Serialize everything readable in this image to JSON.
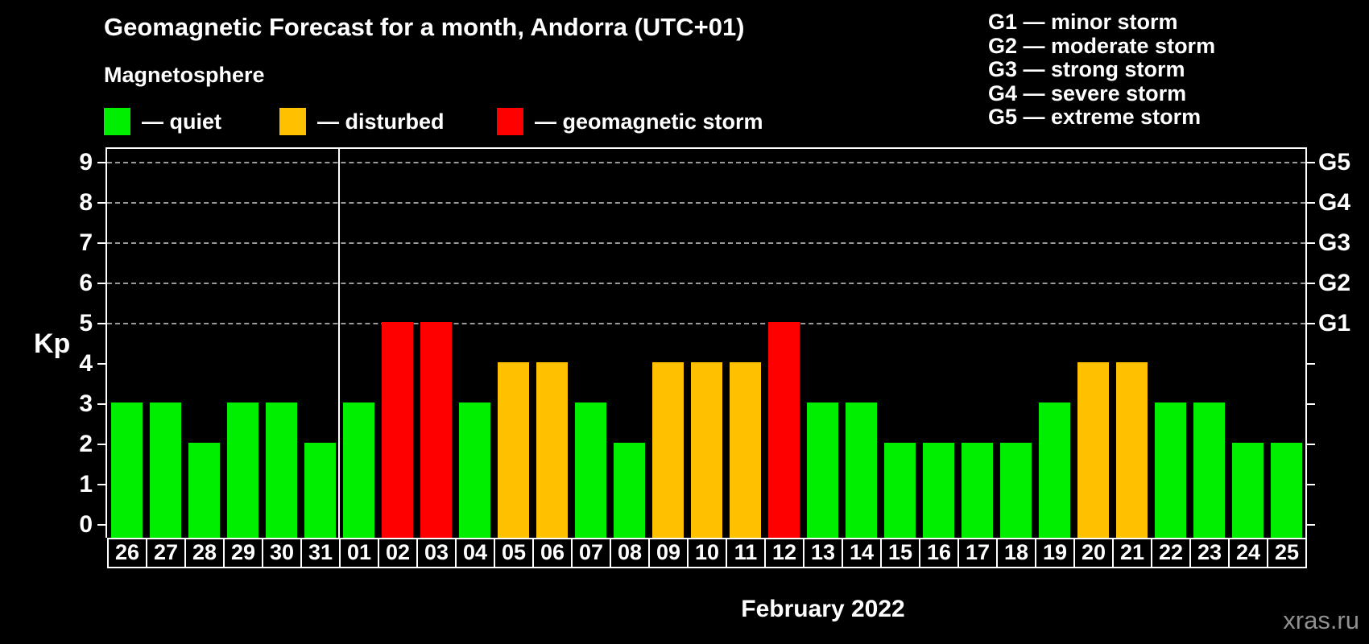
{
  "title": "Geomagnetic Forecast for a month, Andorra (UTC+01)",
  "subtitle": "Magnetosphere",
  "legend": {
    "quiet": {
      "label": "— quiet",
      "color": "#00ee00"
    },
    "disturbed": {
      "label": "— disturbed",
      "color": "#ffc000"
    },
    "storm": {
      "label": "— geomagnetic storm",
      "color": "#ff0000"
    }
  },
  "g_scale": [
    {
      "label": "G1 — minor storm"
    },
    {
      "label": "G2 — moderate storm"
    },
    {
      "label": "G3 — strong storm"
    },
    {
      "label": "G4 — severe storm"
    },
    {
      "label": "G5 — extreme storm"
    }
  ],
  "axis": {
    "kp_label": "Kp",
    "kp_ticks": [
      "0",
      "1",
      "2",
      "3",
      "4",
      "5",
      "6",
      "7",
      "8",
      "9"
    ],
    "right_labels": [
      {
        "label": "G1",
        "kp": 5
      },
      {
        "label": "G2",
        "kp": 6
      },
      {
        "label": "G3",
        "kp": 7
      },
      {
        "label": "G4",
        "kp": 8
      },
      {
        "label": "G5",
        "kp": 9
      }
    ]
  },
  "month_label": "February 2022",
  "watermark": "xras.ru",
  "chart_data": {
    "type": "bar",
    "title": "Geomagnetic Forecast for a month, Andorra (UTC+01)",
    "xlabel": "February 2022",
    "ylabel": "Kp",
    "ylim": [
      0,
      9
    ],
    "grid_levels": [
      5,
      6,
      7,
      8,
      9
    ],
    "legend_position": "top",
    "month_separator_after": "31",
    "categories": [
      "26",
      "27",
      "28",
      "29",
      "30",
      "31",
      "01",
      "02",
      "03",
      "04",
      "05",
      "06",
      "07",
      "08",
      "09",
      "10",
      "11",
      "12",
      "13",
      "14",
      "15",
      "16",
      "17",
      "18",
      "19",
      "20",
      "21",
      "22",
      "23",
      "24",
      "25"
    ],
    "values": [
      3,
      3,
      2,
      3,
      3,
      2,
      3,
      5,
      5,
      3,
      4,
      4,
      3,
      2,
      4,
      4,
      4,
      5,
      3,
      3,
      2,
      2,
      2,
      2,
      3,
      4,
      4,
      3,
      3,
      2,
      2
    ],
    "statuses": [
      "quiet",
      "quiet",
      "quiet",
      "quiet",
      "quiet",
      "quiet",
      "quiet",
      "storm",
      "storm",
      "quiet",
      "disturbed",
      "disturbed",
      "quiet",
      "quiet",
      "disturbed",
      "disturbed",
      "disturbed",
      "storm",
      "quiet",
      "quiet",
      "quiet",
      "quiet",
      "quiet",
      "quiet",
      "quiet",
      "disturbed",
      "disturbed",
      "quiet",
      "quiet",
      "quiet",
      "quiet"
    ]
  }
}
